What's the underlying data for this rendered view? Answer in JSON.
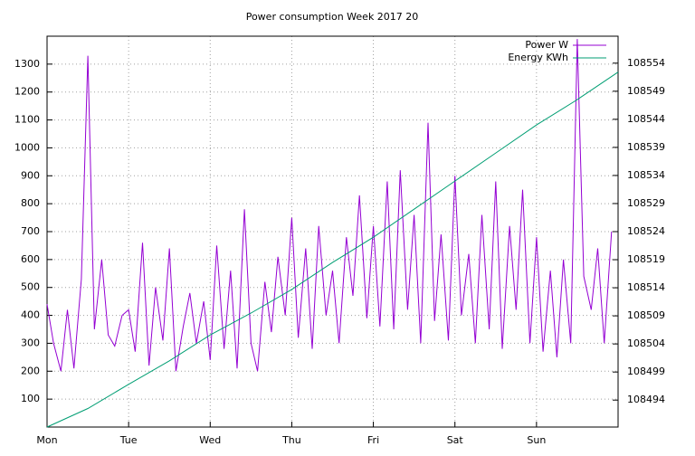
{
  "chart_data": {
    "type": "line",
    "title": "Power consumption Week 2017 20",
    "xlim": [
      0,
      7
    ],
    "xticks": [
      {
        "value": 0,
        "label": "Mon"
      },
      {
        "value": 1,
        "label": "Tue"
      },
      {
        "value": 2,
        "label": "Wed"
      },
      {
        "value": 3,
        "label": "Thu"
      },
      {
        "value": 4,
        "label": "Fri"
      },
      {
        "value": 5,
        "label": "Sat"
      },
      {
        "value": 6,
        "label": "Sun"
      }
    ],
    "ylim": [
      0,
      1400
    ],
    "yticks": [
      100,
      200,
      300,
      400,
      500,
      600,
      700,
      800,
      900,
      1000,
      1100,
      1200,
      1300
    ],
    "y2lim": [
      108489.2,
      108558.8
    ],
    "y2ticks": [
      108494,
      108499,
      108504,
      108509,
      108514,
      108519,
      108524,
      108529,
      108534,
      108539,
      108544,
      108549,
      108554
    ],
    "grid": true,
    "legend": "top-right",
    "series": [
      {
        "name": "Power W",
        "color": "#9400d3",
        "x": [
          0,
          0.08,
          0.17,
          0.25,
          0.33,
          0.42,
          0.5,
          0.58,
          0.67,
          0.75,
          0.83,
          0.92,
          1,
          1.08,
          1.17,
          1.25,
          1.33,
          1.42,
          1.5,
          1.58,
          1.67,
          1.75,
          1.83,
          1.92,
          2,
          2.08,
          2.17,
          2.25,
          2.33,
          2.42,
          2.5,
          2.58,
          2.67,
          2.75,
          2.83,
          2.92,
          3,
          3.08,
          3.17,
          3.25,
          3.33,
          3.42,
          3.5,
          3.58,
          3.67,
          3.75,
          3.83,
          3.92,
          4,
          4.08,
          4.17,
          4.25,
          4.33,
          4.42,
          4.5,
          4.58,
          4.67,
          4.75,
          4.83,
          4.92,
          5,
          5.08,
          5.17,
          5.25,
          5.33,
          5.42,
          5.5,
          5.58,
          5.67,
          5.75,
          5.83,
          5.92,
          6,
          6.08,
          6.17,
          6.25,
          6.33,
          6.42,
          6.5,
          6.58,
          6.67,
          6.75,
          6.83,
          6.92
        ],
        "values": [
          440,
          300,
          200,
          420,
          210,
          530,
          1330,
          350,
          600,
          330,
          290,
          400,
          420,
          270,
          660,
          220,
          500,
          310,
          640,
          200,
          360,
          480,
          300,
          450,
          240,
          650,
          280,
          560,
          210,
          780,
          300,
          200,
          520,
          340,
          610,
          400,
          750,
          320,
          640,
          280,
          720,
          400,
          560,
          300,
          680,
          470,
          830,
          390,
          720,
          360,
          880,
          350,
          920,
          420,
          760,
          300,
          1090,
          380,
          690,
          310,
          900,
          400,
          620,
          300,
          760,
          350,
          880,
          280,
          720,
          420,
          850,
          300,
          680,
          270,
          560,
          250,
          600,
          300,
          1390,
          540,
          420,
          640,
          300,
          700
        ]
      },
      {
        "name": "Energy KWh",
        "color": "#009e73",
        "axis": "y2",
        "x": [
          0,
          0.5,
          1,
          1.5,
          2,
          2.5,
          3,
          3.5,
          4,
          4.5,
          5,
          5.5,
          6,
          6.5,
          7
        ],
        "values": [
          108489.2,
          108492.5,
          108496.8,
          108501,
          108505.6,
          108509.5,
          108513.7,
          108518.5,
          108523,
          108528,
          108533,
          108538,
          108543,
          108547.5,
          108552.4
        ]
      }
    ]
  }
}
